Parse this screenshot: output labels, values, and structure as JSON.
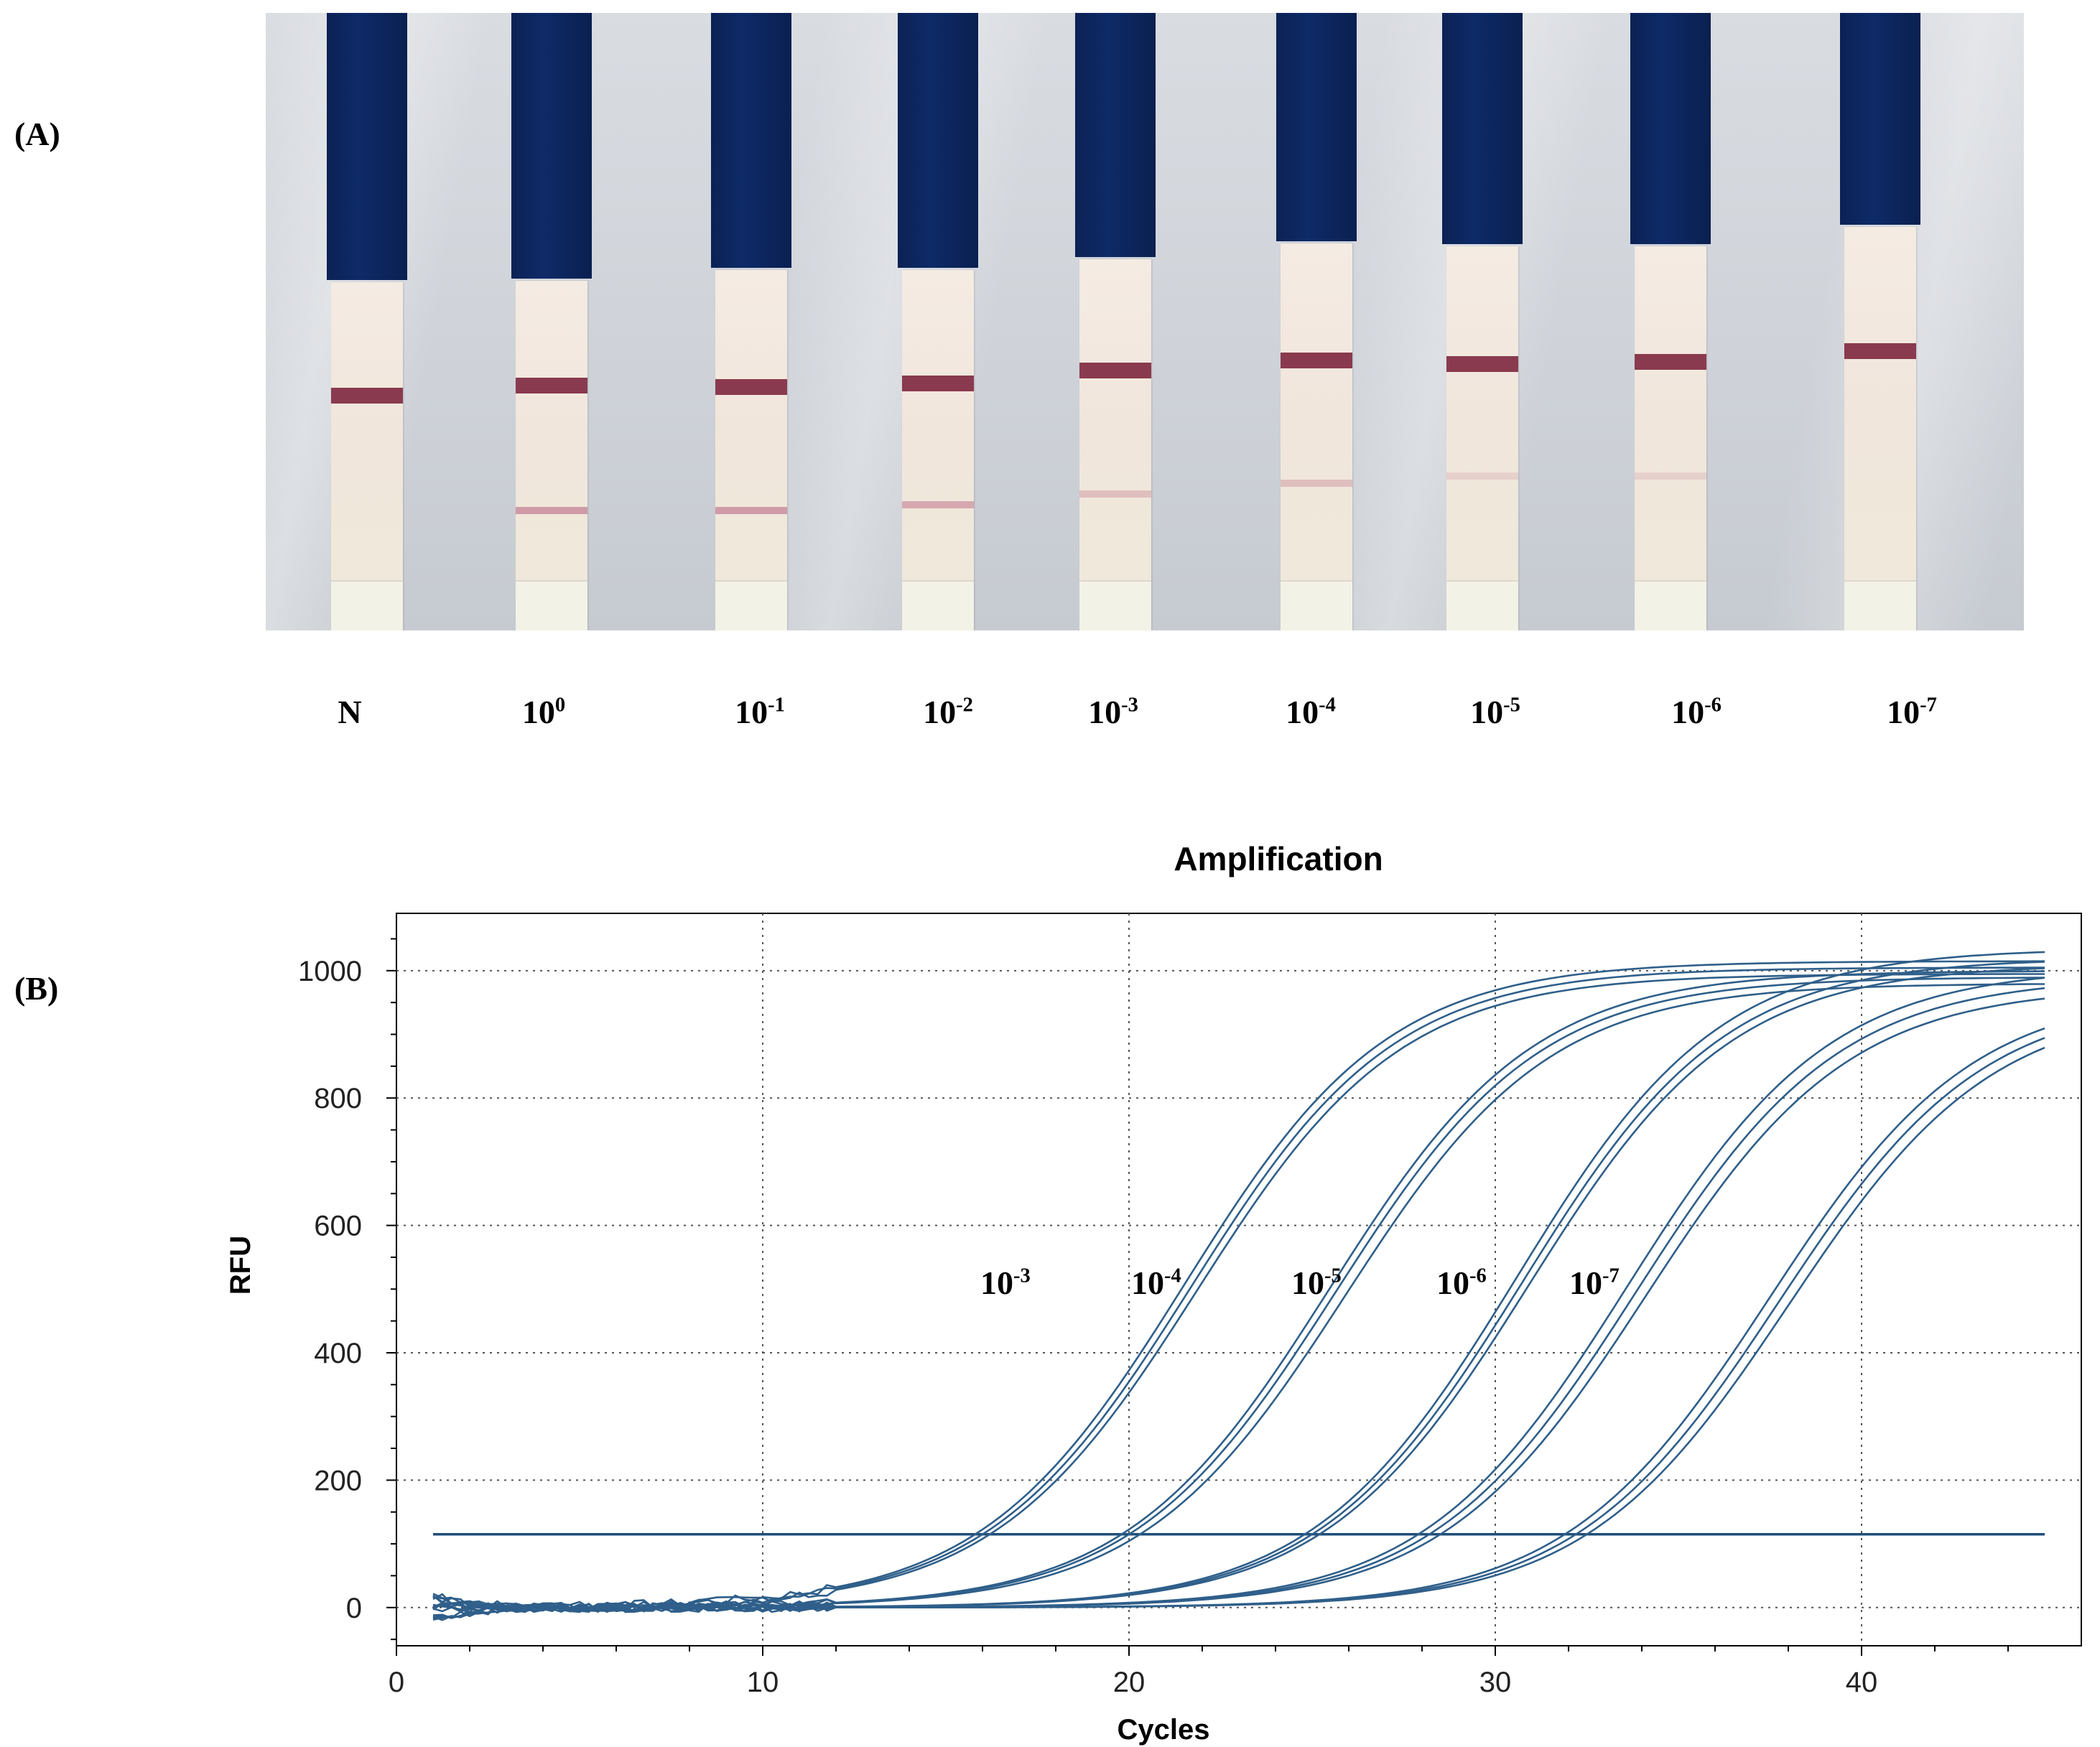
{
  "panels": {
    "a": "(A)",
    "b": "(B)"
  },
  "strips": [
    {
      "label": "N",
      "base": "N",
      "exp": ""
    },
    {
      "label": "10^0",
      "base": "10",
      "exp": "0"
    },
    {
      "label": "10^-1",
      "base": "10",
      "exp": "-1"
    },
    {
      "label": "10^-2",
      "base": "10",
      "exp": "-2"
    },
    {
      "label": "10^-3",
      "base": "10",
      "exp": "-3"
    },
    {
      "label": "10^-4",
      "base": "10",
      "exp": "-4"
    },
    {
      "label": "10^-5",
      "base": "10",
      "exp": "-5"
    },
    {
      "label": "10^-6",
      "base": "10",
      "exp": "-6"
    },
    {
      "label": "10^-7",
      "base": "10",
      "exp": "-7"
    }
  ],
  "strip_test_line": [
    "none",
    "strong",
    "strong",
    "medium",
    "faint",
    "faint",
    "very faint",
    "very faint",
    "none"
  ],
  "colors": {
    "handle": "#0e2a68",
    "control_line": "#8a3a4e",
    "curve": "#2f5f8a",
    "threshold": "#1f4e79"
  },
  "chart_data": {
    "type": "line",
    "title": "Amplification",
    "xlabel": "Cycles",
    "ylabel": "RFU",
    "xlim": [
      0,
      46
    ],
    "ylim": [
      -60,
      1090
    ],
    "xticks": [
      0,
      10,
      20,
      30,
      40
    ],
    "yticks": [
      0,
      200,
      400,
      600,
      800,
      1000
    ],
    "grid": true,
    "threshold": 115,
    "x_range": [
      1,
      45
    ],
    "groups": [
      {
        "name": "10^-3",
        "base": "10",
        "exp": "-3",
        "ct_values": [
          15.8,
          16.0,
          16.2
        ],
        "plateau": [
          1015,
          1005,
          995
        ]
      },
      {
        "name": "10^-4",
        "base": "10",
        "exp": "-4",
        "ct_values": [
          19.8,
          20.0,
          20.3
        ],
        "plateau": [
          1000,
          990,
          980
        ]
      },
      {
        "name": "10^-5",
        "base": "10",
        "exp": "-5",
        "ct_values": [
          24.8,
          25.0,
          25.2
        ],
        "plateau": [
          1035,
          1020,
          1010
        ]
      },
      {
        "name": "10^-6",
        "base": "10",
        "exp": "-6",
        "ct_values": [
          27.9,
          28.2,
          28.5
        ],
        "plateau": [
          1005,
          990,
          975
        ]
      },
      {
        "name": "10^-7",
        "base": "10",
        "exp": "-7",
        "ct_values": [
          31.9,
          32.2,
          32.5
        ],
        "plateau": [
          970,
          960,
          950
        ]
      }
    ]
  }
}
